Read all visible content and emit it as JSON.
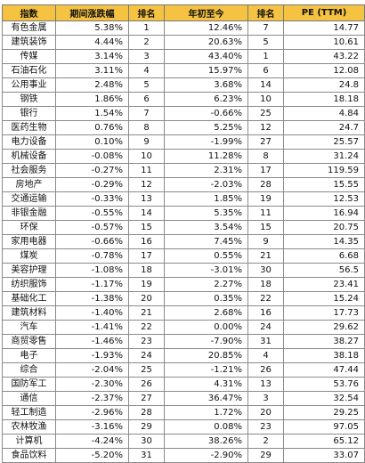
{
  "table": {
    "headers": [
      "指数",
      "期间涨跌幅",
      "排名",
      "年初至今",
      "排名",
      "PE (TTM)"
    ],
    "rows": [
      [
        "有色金属",
        "5.38%",
        "1",
        "12.46%",
        "7",
        "14.77"
      ],
      [
        "建筑装饰",
        "4.44%",
        "2",
        "20.63%",
        "5",
        "10.61"
      ],
      [
        "传媒",
        "3.14%",
        "3",
        "43.40%",
        "1",
        "43.22"
      ],
      [
        "石油石化",
        "3.11%",
        "4",
        "15.97%",
        "6",
        "12.08"
      ],
      [
        "公用事业",
        "2.48%",
        "5",
        "3.68%",
        "14",
        "24.8"
      ],
      [
        "钢铁",
        "1.86%",
        "6",
        "6.23%",
        "10",
        "18.18"
      ],
      [
        "银行",
        "1.54%",
        "7",
        "-0.66%",
        "25",
        "4.84"
      ],
      [
        "医药生物",
        "0.76%",
        "8",
        "5.25%",
        "12",
        "24.7"
      ],
      [
        "电力设备",
        "0.10%",
        "9",
        "-1.99%",
        "27",
        "25.57"
      ],
      [
        "机械设备",
        "-0.08%",
        "10",
        "11.28%",
        "8",
        "31.24"
      ],
      [
        "社会服务",
        "-0.27%",
        "11",
        "2.31%",
        "17",
        "119.59"
      ],
      [
        "房地产",
        "-0.29%",
        "12",
        "-2.03%",
        "28",
        "15.55"
      ],
      [
        "交通运输",
        "-0.33%",
        "13",
        "1.85%",
        "19",
        "12.53"
      ],
      [
        "非银金融",
        "-0.55%",
        "14",
        "5.35%",
        "11",
        "16.94"
      ],
      [
        "环保",
        "-0.57%",
        "15",
        "3.54%",
        "15",
        "20.75"
      ],
      [
        "家用电器",
        "-0.66%",
        "16",
        "7.45%",
        "9",
        "14.35"
      ],
      [
        "煤炭",
        "-0.78%",
        "17",
        "0.55%",
        "21",
        "6.68"
      ],
      [
        "美容护理",
        "-1.08%",
        "18",
        "-3.01%",
        "30",
        "56.5"
      ],
      [
        "纺织服饰",
        "-1.17%",
        "19",
        "2.27%",
        "18",
        "23.41"
      ],
      [
        "基础化工",
        "-1.38%",
        "20",
        "0.35%",
        "22",
        "15.24"
      ],
      [
        "建筑材料",
        "-1.40%",
        "21",
        "2.68%",
        "16",
        "17.73"
      ],
      [
        "汽车",
        "-1.41%",
        "22",
        "0.00%",
        "24",
        "29.62"
      ],
      [
        "商贸零售",
        "-1.46%",
        "23",
        "-7.90%",
        "31",
        "38.27"
      ],
      [
        "电子",
        "-1.93%",
        "24",
        "20.85%",
        "4",
        "38.18"
      ],
      [
        "综合",
        "-2.04%",
        "25",
        "-1.21%",
        "26",
        "47.44"
      ],
      [
        "国防军工",
        "-2.30%",
        "26",
        "4.31%",
        "13",
        "53.76"
      ],
      [
        "通信",
        "-2.37%",
        "27",
        "36.47%",
        "3",
        "32.54"
      ],
      [
        "轻工制造",
        "-2.96%",
        "28",
        "1.72%",
        "20",
        "29.25"
      ],
      [
        "农林牧渔",
        "-3.16%",
        "29",
        "0.08%",
        "23",
        "97.05"
      ],
      [
        "计算机",
        "-4.24%",
        "30",
        "38.26%",
        "2",
        "65.12"
      ],
      [
        "食品饮料",
        "-5.20%",
        "31",
        "-2.90%",
        "29",
        "33.07"
      ]
    ]
  },
  "colors": {
    "header_bg": "#f5c242",
    "border": "#8a8a8a",
    "text": "#111111"
  }
}
